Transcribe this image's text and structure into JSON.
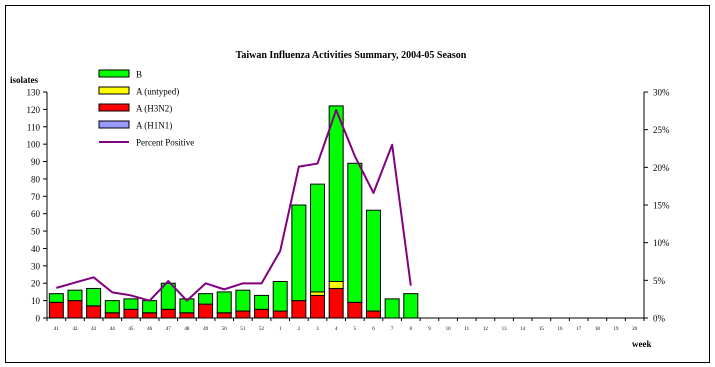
{
  "chart_data": {
    "type": "bar",
    "title": "Taiwan Influenza Activities Summary, 2004-05 Season",
    "ylabel": "isolates",
    "xlabel": "week",
    "ylim": [
      0,
      130
    ],
    "yticks": [
      0,
      10,
      20,
      30,
      40,
      50,
      60,
      70,
      80,
      90,
      100,
      110,
      120,
      130
    ],
    "y2lim": [
      0,
      30
    ],
    "y2ticks": [
      "0%",
      "5%",
      "10%",
      "15%",
      "20%",
      "25%",
      "30%"
    ],
    "y2values": [
      0,
      5,
      10,
      15,
      20,
      25,
      30
    ],
    "legend_position": "top-left",
    "categories": [
      "41",
      "42",
      "43",
      "44",
      "45",
      "46",
      "47",
      "48",
      "49",
      "50",
      "51",
      "52",
      "1",
      "2",
      "3",
      "4",
      "5",
      "6",
      "7",
      "8",
      "9",
      "10",
      "11",
      "12",
      "13",
      "14",
      "15",
      "16",
      "17",
      "18",
      "19",
      "20"
    ],
    "series": [
      {
        "name": "A (H1N1)",
        "color": "#9999ff",
        "values": [
          0,
          0,
          0,
          0,
          0,
          0,
          0,
          0,
          0,
          0,
          0,
          0,
          0,
          0,
          0,
          0,
          0,
          0,
          0,
          0,
          0,
          0,
          0,
          0,
          0,
          0,
          0,
          0,
          0,
          0,
          0,
          0
        ]
      },
      {
        "name": "A (H3N2)",
        "color": "#ff0000",
        "values": [
          9,
          10,
          7,
          3,
          5,
          3,
          5,
          3,
          8,
          3,
          4,
          5,
          4,
          10,
          13,
          17,
          9,
          4,
          0,
          0,
          0,
          0,
          0,
          0,
          0,
          0,
          0,
          0,
          0,
          0,
          0,
          0
        ]
      },
      {
        "name": "A (untyped)",
        "color": "#ffff00",
        "values": [
          0,
          0,
          0,
          0,
          0,
          0,
          0,
          0,
          0,
          0,
          0,
          0,
          0,
          0,
          2,
          4,
          0,
          0,
          0,
          0,
          0,
          0,
          0,
          0,
          0,
          0,
          0,
          0,
          0,
          0,
          0,
          0
        ]
      },
      {
        "name": "B",
        "color": "#00ff00",
        "values": [
          5,
          6,
          10,
          7,
          6,
          7,
          15,
          8,
          6,
          12,
          12,
          8,
          17,
          55,
          62,
          101,
          80,
          58,
          11,
          14,
          0,
          0,
          0,
          0,
          0,
          0,
          0,
          0,
          0,
          0,
          0,
          0
        ]
      }
    ],
    "line": {
      "name": "Percent Positive",
      "color": "#800080",
      "values": [
        4.0,
        4.7,
        5.4,
        3.4,
        3.0,
        2.3,
        4.9,
        2.3,
        4.6,
        3.8,
        4.6,
        4.6,
        8.9,
        20.1,
        20.5,
        27.6,
        21.5,
        16.6,
        23.0,
        4.3
      ]
    },
    "legend": [
      {
        "label": "B",
        "color": "#00ff00",
        "kind": "box"
      },
      {
        "label": "A (untyped)",
        "color": "#ffff00",
        "kind": "box"
      },
      {
        "label": "A (H3N2)",
        "color": "#ff0000",
        "kind": "box"
      },
      {
        "label": "A (H1N1)",
        "color": "#9999ff",
        "kind": "box"
      },
      {
        "label": "Percent Positive",
        "color": "#800080",
        "kind": "line"
      }
    ]
  }
}
